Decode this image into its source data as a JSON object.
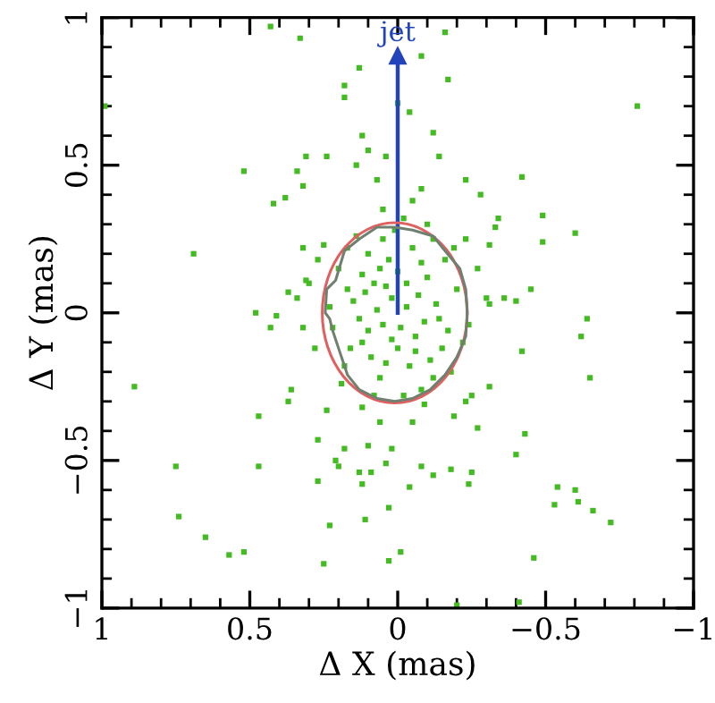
{
  "chart_data": {
    "type": "scatter",
    "xlabel": "Δ X (mas)",
    "ylabel": "Δ Y (mas)",
    "xlim": [
      1,
      -1
    ],
    "ylim": [
      -1,
      1
    ],
    "xticks": [
      1,
      {
        "value": 0.9,
        "label": null
      },
      {
        "value": 0.8,
        "label": null
      },
      {
        "value": 0.7,
        "label": null
      },
      {
        "value": 0.6,
        "label": null
      },
      0.5,
      {
        "value": 0.4,
        "label": null
      },
      {
        "value": 0.3,
        "label": null
      },
      {
        "value": 0.2,
        "label": null
      },
      {
        "value": 0.1,
        "label": null
      },
      0,
      {
        "value": -0.1,
        "label": null
      },
      {
        "value": -0.2,
        "label": null
      },
      {
        "value": -0.3,
        "label": null
      },
      {
        "value": -0.4,
        "label": null
      },
      {
        "value": -0.5,
        "label": "−0.5"
      },
      {
        "value": -0.6,
        "label": null
      },
      {
        "value": -0.7,
        "label": null
      },
      {
        "value": -0.8,
        "label": null
      },
      {
        "value": -0.9,
        "label": null
      },
      {
        "value": -1,
        "label": "−1"
      }
    ],
    "yticks": [
      {
        "value": -1,
        "label": "−1"
      },
      {
        "value": -0.9,
        "label": null
      },
      {
        "value": -0.8,
        "label": null
      },
      {
        "value": -0.7,
        "label": null
      },
      {
        "value": -0.6,
        "label": null
      },
      {
        "value": -0.5,
        "label": "−0.5"
      },
      {
        "value": -0.4,
        "label": null
      },
      {
        "value": -0.3,
        "label": null
      },
      {
        "value": -0.2,
        "label": null
      },
      {
        "value": -0.1,
        "label": null
      },
      0,
      {
        "value": 0.1,
        "label": null
      },
      {
        "value": 0.2,
        "label": null
      },
      {
        "value": 0.3,
        "label": null
      },
      {
        "value": 0.4,
        "label": null
      },
      0.5,
      {
        "value": 0.6,
        "label": null
      },
      {
        "value": 0.7,
        "label": null
      },
      {
        "value": 0.8,
        "label": null
      },
      {
        "value": 0.9,
        "label": null
      },
      1
    ],
    "grid": false,
    "legend": false,
    "annotations": [
      {
        "text": "jet",
        "x": 0,
        "y": 0.9
      }
    ],
    "series": [
      {
        "color": "#44bb22",
        "marker": "square",
        "x": [
          0.43,
          0.33,
          -0.16,
          -0.08,
          -0.17,
          0.13,
          0.18,
          0.18,
          0.0,
          -0.04,
          -0.81,
          0.99,
          -0.12,
          0.12,
          0.1,
          0.04,
          -0.14,
          0.24,
          0.31,
          0.52,
          0.34,
          0.14,
          -0.42,
          -0.23,
          0.32,
          0.38,
          0.42,
          -0.28,
          -0.49,
          -0.49,
          -0.6,
          0.69,
          -0.34,
          -0.33,
          0.48,
          0.41,
          0.43,
          0.37,
          0.34,
          0.32,
          -0.64,
          -0.62,
          -0.45,
          -0.4,
          -0.36,
          -0.31,
          -0.42,
          0.25,
          0.32,
          0.31,
          -0.31,
          -0.23,
          0.89,
          0.36,
          0.37,
          0.47,
          0.75,
          0.47,
          0.74,
          0.65,
          0.57,
          0.52,
          0.25,
          0.23,
          0.27,
          0.27,
          0.21,
          0.2,
          0.18,
          0.13,
          0.12,
          0.1,
          0.09,
          0.11,
          0.03,
          0.04,
          0.02,
          -0.04,
          -0.08,
          -0.12,
          -0.18,
          -0.24,
          -0.25,
          0.03,
          -0.01,
          -0.2,
          -0.41,
          -0.46,
          -0.4,
          -0.43,
          -0.54,
          -0.53,
          -0.6,
          -0.61,
          -0.66,
          -0.72,
          -0.65,
          -0.27,
          -0.19,
          -0.23,
          -0.31,
          0.06,
          -0.05,
          0.24,
          0.12,
          -0.09,
          0.02,
          -0.03,
          0.05,
          -0.06,
          0.08,
          -0.1,
          0.12,
          -0.14,
          0.15,
          0.0,
          0.03,
          -0.05,
          0.1,
          -0.12,
          0.18,
          -0.18,
          0.06,
          -0.08,
          0.2,
          -0.2,
          0.22,
          -0.22,
          0.01,
          -0.02,
          0.14,
          -0.16,
          0.09,
          -0.11,
          0.04,
          -0.07,
          0.07,
          -0.01,
          0.11,
          -0.13,
          0.16,
          -0.04,
          0.0,
          -0.09,
          0.13,
          -0.15,
          0.05,
          -0.19,
          0.17,
          0.19,
          -0.1,
          0.08,
          -0.24,
          0.23,
          -0.03,
          0.02,
          -0.06,
          0.06,
          -0.17,
          0.1,
          -0.08,
          0.12,
          -0.02,
          0.04,
          -0.12,
          0.17,
          -0.27,
          0.28,
          -0.25,
          0.27,
          -0.05,
          0.05,
          -0.08,
          0.07,
          -0.3,
          0.3
        ],
        "values": [
          0.97,
          0.93,
          0.95,
          0.87,
          0.79,
          0.83,
          0.77,
          0.73,
          0.71,
          0.68,
          0.7,
          0.7,
          0.61,
          0.6,
          0.55,
          0.53,
          0.53,
          0.53,
          0.53,
          0.48,
          0.48,
          0.5,
          0.46,
          0.45,
          0.43,
          0.39,
          0.37,
          0.4,
          0.33,
          0.24,
          0.27,
          0.2,
          0.32,
          0.29,
          0.0,
          -0.01,
          -0.05,
          0.07,
          0.05,
          -0.05,
          -0.02,
          -0.08,
          0.08,
          0.04,
          0.05,
          0.03,
          -0.13,
          0.23,
          0.22,
          0.11,
          0.23,
          0.25,
          -0.25,
          -0.26,
          -0.3,
          -0.35,
          -0.52,
          -0.52,
          -0.69,
          -0.76,
          -0.82,
          -0.81,
          -0.85,
          -0.72,
          -0.57,
          -0.43,
          -0.5,
          -0.52,
          -0.46,
          -0.54,
          -0.58,
          -0.45,
          -0.54,
          -0.7,
          -0.66,
          -0.51,
          -0.46,
          -0.59,
          -0.52,
          -0.55,
          -0.53,
          -0.58,
          -0.54,
          -0.84,
          -0.81,
          -0.99,
          -0.98,
          -0.83,
          -0.48,
          -0.41,
          -0.59,
          -0.65,
          -0.6,
          -0.64,
          -0.67,
          -0.71,
          -0.22,
          -0.39,
          -0.35,
          -0.3,
          -0.25,
          -0.37,
          -0.37,
          -0.33,
          -0.32,
          -0.31,
          0.05,
          0.02,
          -0.04,
          -0.08,
          0.1,
          0.12,
          -0.1,
          -0.02,
          0.04,
          -0.12,
          0.18,
          0.22,
          0.2,
          0.25,
          -0.18,
          -0.2,
          -0.22,
          -0.26,
          0.15,
          0.08,
          -0.05,
          -0.1,
          0.28,
          -0.28,
          0.26,
          0.18,
          -0.15,
          -0.16,
          0.09,
          0.06,
          0.01,
          -0.05,
          0.07,
          0.03,
          -0.12,
          -0.18,
          0.14,
          -0.03,
          -0.02,
          -0.12,
          0.25,
          0.22,
          0.22,
          -0.24,
          0.3,
          -0.28,
          -0.04,
          0.02,
          0.1,
          -0.09,
          -0.13,
          0.15,
          -0.06,
          -0.06,
          0.17,
          0.13,
          0.32,
          -0.17,
          -0.22,
          0.08,
          0.15,
          -0.12,
          -0.28,
          0.18,
          0.38,
          0.35,
          0.42,
          0.45,
          0.05,
          0.1
        ]
      },
      {
        "type": "line",
        "color": "#2244bb",
        "marker": "triangle",
        "x": [
          0,
          0
        ],
        "values": [
          0,
          0.87
        ]
      }
    ]
  }
}
